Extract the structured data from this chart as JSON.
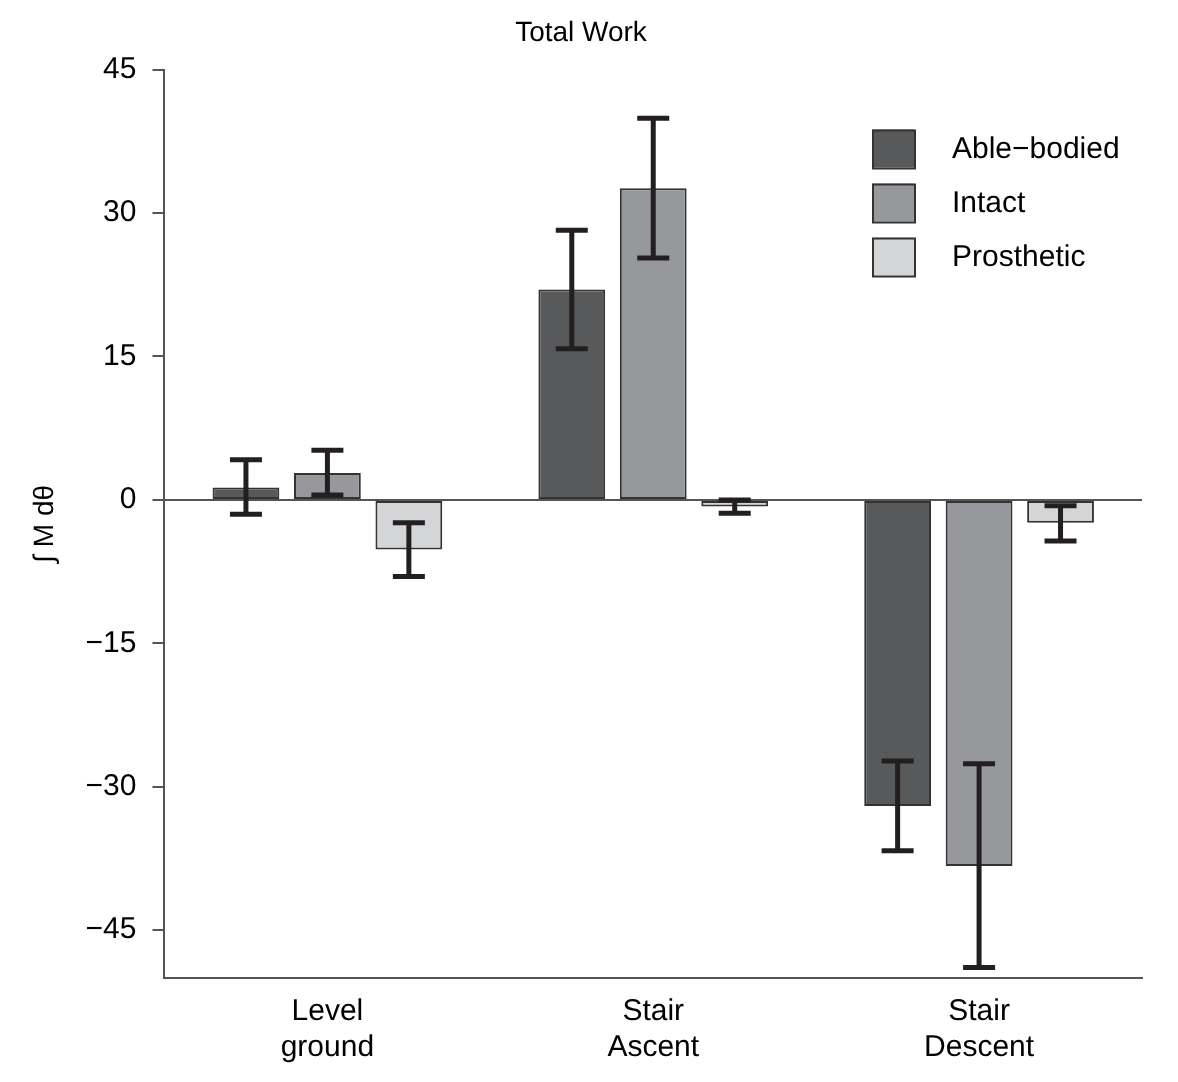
{
  "chart_data": {
    "type": "bar",
    "title": "Total Work",
    "ylabel": "∫ M dθ",
    "categories": [
      "Level ground",
      "Stair Ascent",
      "Stair Descent"
    ],
    "series": [
      {
        "name": "Able−bodied",
        "color": "#58595b",
        "values": [
          1.3,
          22.0,
          -32.0
        ],
        "errors": [
          [
            -1.5,
            4.2
          ],
          [
            15.8,
            28.2
          ],
          [
            -36.7,
            -27.3
          ]
        ]
      },
      {
        "name": "Intact",
        "color": "#97989c",
        "values": [
          2.8,
          32.6,
          -38.3
        ],
        "errors": [
          [
            0.5,
            5.2
          ],
          [
            25.3,
            39.9
          ],
          [
            -48.9,
            -27.6
          ]
        ]
      },
      {
        "name": "Prosthetic",
        "color": "#d4d5d6",
        "values": [
          -5.2,
          -0.7,
          -2.4
        ],
        "errors": [
          [
            -8.0,
            -2.4
          ],
          [
            -1.4,
            0
          ],
          [
            -4.3,
            -0.6
          ]
        ]
      }
    ],
    "ylim": [
      -50,
      45
    ],
    "yticks": [
      -45,
      -30,
      -15,
      0,
      15,
      30,
      45
    ],
    "grid": false,
    "legend": "top right",
    "ref_lines": [
      {
        "axis": "y",
        "value": 0
      }
    ]
  }
}
